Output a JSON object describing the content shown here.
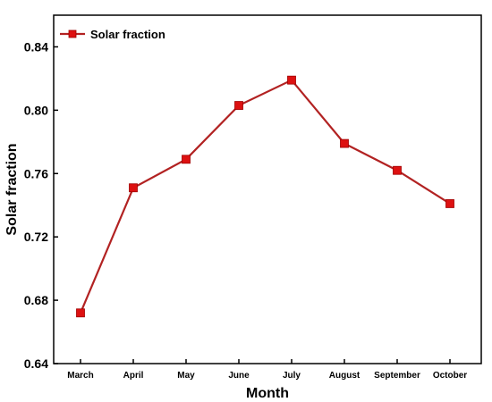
{
  "chart_data": {
    "type": "line",
    "categories": [
      "March",
      "April",
      "May",
      "June",
      "July",
      "August",
      "September",
      "October"
    ],
    "series": [
      {
        "name": "Solar fraction",
        "values": [
          0.672,
          0.751,
          0.769,
          0.803,
          0.819,
          0.779,
          0.762,
          0.741
        ]
      }
    ],
    "xlabel": "Month",
    "ylabel": "Solar fraction",
    "ylim": [
      0.64,
      0.86
    ],
    "yticks": [
      "0.64",
      "0.68",
      "0.72",
      "0.76",
      "0.80",
      "0.84"
    ],
    "grid": false,
    "legend_position": "top-left",
    "colors": {
      "line": "#b22222",
      "marker": "#dd1111",
      "axis": "#000000"
    }
  }
}
